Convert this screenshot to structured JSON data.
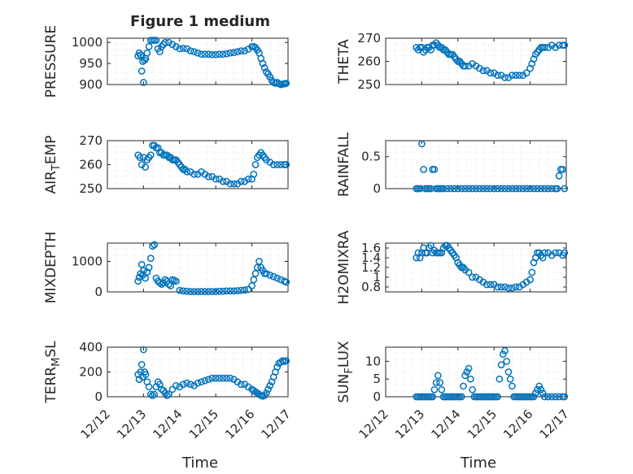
{
  "figure": {
    "title": "Figure 1 medium"
  },
  "style": {
    "marker_color": "#0072BD",
    "axis_color": "#262626",
    "grid_color": "#d9d9d9",
    "background": "#ffffff"
  },
  "x_axis": {
    "label": "Time",
    "ticks": [
      "12/12",
      "12/13",
      "12/14",
      "12/15",
      "12/16",
      "12/17"
    ],
    "range_days": [
      12,
      17
    ]
  },
  "chart_data": [
    {
      "type": "scatter",
      "ylabel": "PRESSURE",
      "ylim": [
        900,
        1010
      ],
      "yticks": [
        "900",
        "950",
        "1000"
      ],
      "x": [
        12.85,
        12.88,
        12.92,
        12.95,
        12.98,
        13.0,
        13.03,
        13.06,
        13.1,
        13.15,
        13.2,
        13.25,
        13.3,
        13.35,
        13.4,
        13.45,
        13.5,
        13.55,
        13.6,
        13.7,
        13.8,
        13.9,
        14.0,
        14.1,
        14.2,
        14.3,
        14.4,
        14.5,
        14.6,
        14.7,
        14.8,
        14.9,
        15.0,
        15.1,
        15.2,
        15.3,
        15.4,
        15.5,
        15.6,
        15.7,
        15.8,
        15.9,
        16.0,
        16.05,
        16.1,
        16.15,
        16.2,
        16.25,
        16.3,
        16.35,
        16.4,
        16.45,
        16.5,
        16.55,
        16.6,
        16.65,
        16.7,
        16.75,
        16.8,
        16.85,
        16.9,
        16.92,
        16.95
      ],
      "values": [
        968,
        975,
        970,
        932,
        955,
        905,
        958,
        962,
        975,
        990,
        1005,
        1005,
        1005,
        1005,
        985,
        978,
        990,
        995,
        1000,
        1000,
        995,
        990,
        985,
        986,
        985,
        980,
        978,
        975,
        972,
        972,
        972,
        971,
        971,
        972,
        972,
        973,
        975,
        976,
        978,
        980,
        980,
        984,
        990,
        990,
        988,
        982,
        975,
        962,
        950,
        940,
        930,
        925,
        918,
        910,
        905,
        903,
        905,
        902,
        900,
        901,
        902,
        902,
        903
      ]
    },
    {
      "type": "scatter",
      "ylabel": "THETA",
      "ylim": [
        250,
        270
      ],
      "yticks": [
        "250",
        "260",
        "270"
      ],
      "x": [
        12.85,
        12.9,
        12.95,
        13.0,
        13.05,
        13.1,
        13.15,
        13.2,
        13.25,
        13.3,
        13.35,
        13.4,
        13.45,
        13.5,
        13.55,
        13.6,
        13.65,
        13.7,
        13.75,
        13.8,
        13.85,
        13.9,
        13.95,
        14.0,
        14.05,
        14.1,
        14.15,
        14.2,
        14.3,
        14.4,
        14.5,
        14.6,
        14.7,
        14.8,
        14.9,
        15.0,
        15.1,
        15.2,
        15.3,
        15.4,
        15.5,
        15.6,
        15.7,
        15.8,
        15.9,
        16.0,
        16.05,
        16.1,
        16.15,
        16.2,
        16.25,
        16.3,
        16.35,
        16.4,
        16.5,
        16.6,
        16.7,
        16.8,
        16.9,
        16.95
      ],
      "values": [
        266,
        265,
        266,
        266,
        264,
        265,
        266,
        266,
        265,
        267,
        267,
        268,
        267,
        266,
        266,
        265,
        265,
        264,
        263,
        263,
        263,
        262,
        261,
        260,
        260,
        259,
        258,
        258,
        258,
        259,
        258,
        257,
        256,
        256,
        255,
        255,
        254,
        254,
        253,
        253,
        254,
        254,
        254,
        254,
        255,
        257,
        259,
        261,
        263,
        264,
        265,
        266,
        266,
        266,
        266,
        267,
        266,
        267,
        267,
        267
      ]
    },
    {
      "type": "scatter",
      "ylabel": "AIR_TEMP",
      "ylim": [
        250,
        270
      ],
      "yticks": [
        "250",
        "260",
        "270"
      ],
      "x": [
        12.85,
        12.9,
        12.95,
        13.0,
        13.05,
        13.1,
        13.15,
        13.2,
        13.25,
        13.3,
        13.35,
        13.4,
        13.45,
        13.5,
        13.55,
        13.6,
        13.65,
        13.7,
        13.75,
        13.8,
        13.85,
        13.9,
        13.95,
        14.0,
        14.05,
        14.1,
        14.15,
        14.2,
        14.3,
        14.4,
        14.5,
        14.6,
        14.7,
        14.8,
        14.9,
        15.0,
        15.1,
        15.2,
        15.3,
        15.4,
        15.5,
        15.6,
        15.7,
        15.8,
        15.9,
        16.0,
        16.05,
        16.1,
        16.15,
        16.2,
        16.25,
        16.3,
        16.35,
        16.4,
        16.5,
        16.6,
        16.7,
        16.8,
        16.9,
        16.95
      ],
      "values": [
        264,
        263,
        260,
        263,
        259,
        262,
        263,
        264,
        268,
        268,
        267,
        267,
        265,
        265,
        264,
        264,
        264,
        263,
        263,
        262,
        262,
        262,
        261,
        260,
        259,
        258,
        258,
        257,
        257,
        256,
        256,
        257,
        256,
        255,
        255,
        254,
        254,
        253,
        253,
        252,
        252,
        252,
        253,
        253,
        254,
        254,
        256,
        260,
        263,
        264,
        265,
        264,
        263,
        262,
        261,
        260,
        260,
        260,
        260,
        260
      ]
    },
    {
      "type": "scatter",
      "ylabel": "RAINFALL",
      "ylim": [
        0,
        0.75
      ],
      "yticks": [
        "0",
        "0.5"
      ],
      "x": [
        12.85,
        12.9,
        12.95,
        13.0,
        13.05,
        13.1,
        13.15,
        13.2,
        13.25,
        13.3,
        13.35,
        13.4,
        13.45,
        13.5,
        13.55,
        13.6,
        13.7,
        13.8,
        13.9,
        14.0,
        14.1,
        14.2,
        14.3,
        14.4,
        14.5,
        14.6,
        14.7,
        14.8,
        14.9,
        15.0,
        15.1,
        15.2,
        15.3,
        15.4,
        15.5,
        15.6,
        15.7,
        15.8,
        15.9,
        16.0,
        16.1,
        16.2,
        16.3,
        16.4,
        16.5,
        16.6,
        16.7,
        16.75,
        16.8,
        16.85,
        16.9,
        16.95
      ],
      "values": [
        0,
        0,
        0,
        0.7,
        0.3,
        0,
        0,
        0,
        0,
        0.3,
        0.3,
        0,
        0,
        0,
        0,
        0,
        0,
        0,
        0,
        0,
        0,
        0,
        0,
        0,
        0,
        0,
        0,
        0,
        0,
        0,
        0,
        0,
        0,
        0,
        0,
        0,
        0,
        0,
        0,
        0,
        0,
        0,
        0,
        0,
        0,
        0,
        0,
        0,
        0.2,
        0.3,
        0.3,
        0
      ]
    },
    {
      "type": "scatter",
      "ylabel": "MIXDEPTH",
      "ylim": [
        0,
        1600
      ],
      "yticks": [
        "0",
        "1000"
      ],
      "x": [
        12.85,
        12.88,
        12.92,
        12.95,
        12.98,
        13.0,
        13.05,
        13.1,
        13.15,
        13.2,
        13.25,
        13.3,
        13.35,
        13.4,
        13.45,
        13.5,
        13.55,
        13.6,
        13.65,
        13.7,
        13.75,
        13.8,
        13.85,
        13.9,
        14.0,
        14.1,
        14.2,
        14.3,
        14.4,
        14.5,
        14.6,
        14.7,
        14.8,
        14.9,
        15.0,
        15.1,
        15.2,
        15.3,
        15.4,
        15.5,
        15.6,
        15.7,
        15.8,
        15.9,
        16.0,
        16.05,
        16.1,
        16.15,
        16.2,
        16.25,
        16.3,
        16.35,
        16.4,
        16.5,
        16.6,
        16.7,
        16.8,
        16.9,
        16.95
      ],
      "values": [
        350,
        480,
        600,
        900,
        550,
        700,
        450,
        650,
        800,
        1100,
        1500,
        1550,
        450,
        350,
        300,
        250,
        300,
        400,
        350,
        250,
        200,
        400,
        380,
        350,
        50,
        30,
        20,
        10,
        10,
        10,
        10,
        10,
        10,
        10,
        10,
        20,
        20,
        30,
        30,
        30,
        40,
        50,
        60,
        80,
        200,
        400,
        600,
        800,
        1000,
        800,
        700,
        600,
        600,
        550,
        500,
        450,
        400,
        350,
        320
      ]
    },
    {
      "type": "scatter",
      "ylabel": "H2OMIXRA",
      "ylim": [
        0.7,
        1.7
      ],
      "yticks": [
        "0.8",
        "1",
        "1.2",
        "1.4",
        "1.6"
      ],
      "x": [
        12.85,
        12.9,
        12.95,
        13.0,
        13.05,
        13.1,
        13.15,
        13.2,
        13.25,
        13.3,
        13.35,
        13.4,
        13.45,
        13.5,
        13.55,
        13.6,
        13.65,
        13.7,
        13.75,
        13.8,
        13.85,
        13.9,
        13.95,
        14.0,
        14.05,
        14.1,
        14.15,
        14.2,
        14.3,
        14.4,
        14.5,
        14.6,
        14.7,
        14.8,
        14.9,
        15.0,
        15.1,
        15.2,
        15.3,
        15.4,
        15.5,
        15.6,
        15.7,
        15.8,
        15.9,
        16.0,
        16.05,
        16.1,
        16.15,
        16.2,
        16.25,
        16.3,
        16.35,
        16.4,
        16.5,
        16.6,
        16.7,
        16.8,
        16.9,
        16.95
      ],
      "values": [
        1.4,
        1.5,
        1.4,
        1.5,
        1.6,
        1.5,
        1.5,
        1.6,
        1.65,
        1.5,
        1.55,
        1.5,
        1.5,
        1.5,
        1.5,
        1.6,
        1.65,
        1.65,
        1.6,
        1.55,
        1.5,
        1.45,
        1.4,
        1.3,
        1.25,
        1.2,
        1.2,
        1.15,
        1.1,
        1.0,
        1.0,
        0.95,
        0.9,
        0.85,
        0.85,
        0.85,
        0.8,
        0.8,
        0.8,
        0.78,
        0.78,
        0.8,
        0.8,
        0.85,
        0.9,
        0.95,
        1.1,
        1.3,
        1.4,
        1.5,
        1.5,
        1.45,
        1.4,
        1.5,
        1.5,
        1.45,
        1.5,
        1.5,
        1.45,
        1.5
      ]
    },
    {
      "type": "scatter",
      "ylabel": "TERR_MSL",
      "ylim": [
        0,
        400
      ],
      "yticks": [
        "0",
        "200",
        "400"
      ],
      "x": [
        12.85,
        12.88,
        12.92,
        12.95,
        12.98,
        13.0,
        13.03,
        13.06,
        13.1,
        13.15,
        13.2,
        13.25,
        13.3,
        13.35,
        13.4,
        13.45,
        13.5,
        13.55,
        13.6,
        13.65,
        13.7,
        13.8,
        13.9,
        14.0,
        14.1,
        14.2,
        14.3,
        14.4,
        14.5,
        14.6,
        14.7,
        14.8,
        14.9,
        15.0,
        15.1,
        15.2,
        15.3,
        15.4,
        15.5,
        15.6,
        15.7,
        15.8,
        15.9,
        16.0,
        16.05,
        16.1,
        16.15,
        16.2,
        16.25,
        16.3,
        16.35,
        16.4,
        16.45,
        16.5,
        16.55,
        16.6,
        16.65,
        16.7,
        16.75,
        16.8,
        16.85,
        16.9,
        16.95
      ],
      "values": [
        180,
        140,
        200,
        260,
        160,
        380,
        200,
        180,
        120,
        80,
        20,
        10,
        20,
        80,
        120,
        100,
        60,
        50,
        30,
        10,
        20,
        60,
        90,
        80,
        100,
        110,
        100,
        90,
        110,
        120,
        130,
        140,
        150,
        150,
        150,
        150,
        150,
        150,
        140,
        120,
        100,
        100,
        80,
        60,
        50,
        40,
        30,
        20,
        10,
        5,
        10,
        30,
        60,
        90,
        120,
        160,
        200,
        240,
        270,
        280,
        290,
        285,
        290
      ]
    },
    {
      "type": "scatter",
      "ylabel": "SUN_FLUX",
      "ylim": [
        0,
        14
      ],
      "yticks": [
        "0",
        "5",
        "10"
      ],
      "x": [
        12.85,
        12.9,
        12.95,
        13.0,
        13.05,
        13.1,
        13.15,
        13.2,
        13.25,
        13.3,
        13.35,
        13.4,
        13.45,
        13.5,
        13.55,
        13.6,
        13.65,
        13.7,
        13.75,
        13.8,
        13.85,
        13.9,
        13.95,
        14.0,
        14.05,
        14.1,
        14.15,
        14.2,
        14.25,
        14.3,
        14.35,
        14.4,
        14.45,
        14.5,
        14.55,
        14.6,
        14.65,
        14.7,
        14.75,
        14.8,
        14.85,
        14.9,
        14.95,
        15.0,
        15.05,
        15.1,
        15.15,
        15.2,
        15.25,
        15.3,
        15.35,
        15.4,
        15.45,
        15.5,
        15.55,
        15.6,
        15.65,
        15.7,
        15.75,
        15.8,
        15.85,
        15.9,
        15.95,
        16.0,
        16.05,
        16.1,
        16.15,
        16.2,
        16.25,
        16.3,
        16.35,
        16.4,
        16.5,
        16.6,
        16.7,
        16.8,
        16.9,
        16.95
      ],
      "values": [
        0,
        0,
        0,
        0,
        0,
        0,
        0,
        0,
        0,
        0,
        2,
        4,
        6,
        4,
        2,
        0,
        0,
        0,
        0,
        0,
        0,
        0,
        0,
        0,
        0,
        0,
        3,
        6,
        7,
        8,
        5,
        2,
        0,
        0,
        0,
        0,
        0,
        0,
        0,
        0,
        0,
        0,
        0,
        0,
        0,
        0,
        5,
        9,
        12,
        13,
        10,
        7,
        5,
        3,
        0,
        0,
        0,
        0,
        0,
        0,
        0,
        0,
        0,
        0,
        0,
        0,
        1,
        2,
        3,
        2,
        1,
        0,
        0,
        0,
        0,
        0,
        0,
        0
      ]
    }
  ]
}
